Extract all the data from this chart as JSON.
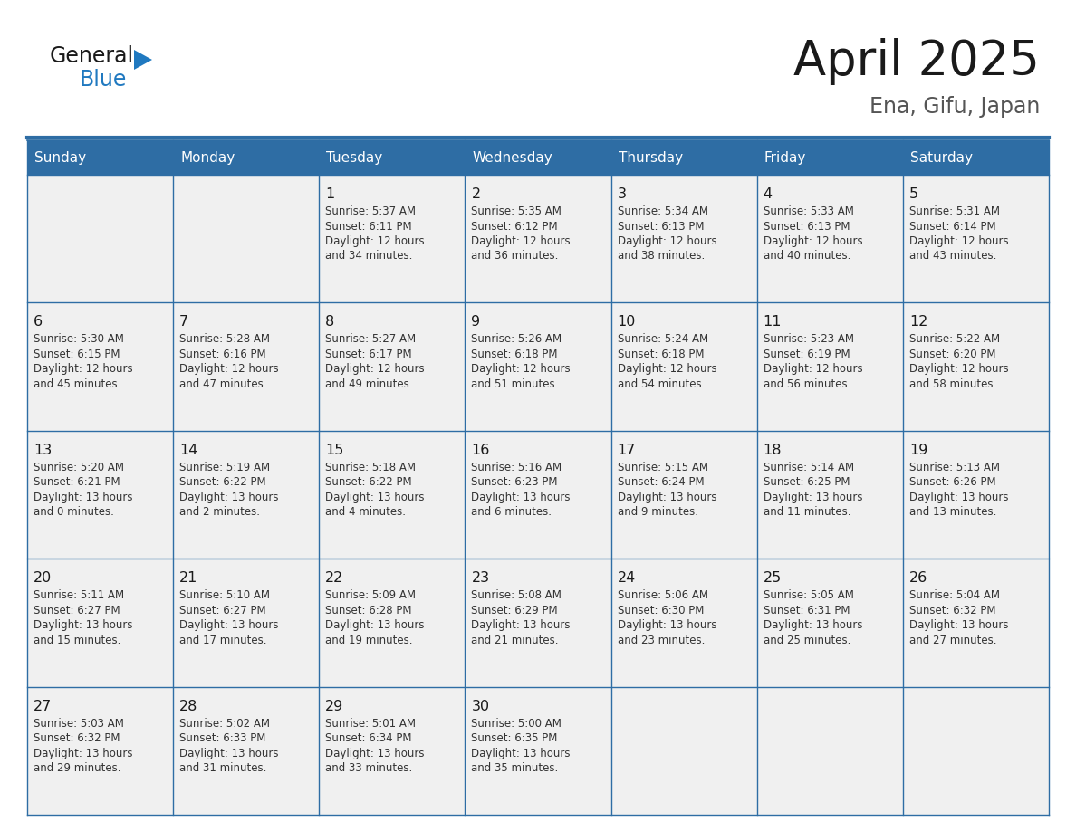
{
  "title": "April 2025",
  "subtitle": "Ena, Gifu, Japan",
  "header_color": "#2E6DA4",
  "header_text_color": "#FFFFFF",
  "cell_bg_color": "#F0F0F0",
  "border_color": "#2E6DA4",
  "text_color": "#333333",
  "day_number_color": "#1a1a1a",
  "title_color": "#1a1a1a",
  "logo_general_color": "#1a1a1a",
  "logo_blue_color": "#2079C0",
  "logo_triangle_color": "#2079C0",
  "day_headers": [
    "Sunday",
    "Monday",
    "Tuesday",
    "Wednesday",
    "Thursday",
    "Friday",
    "Saturday"
  ],
  "weeks": [
    [
      {
        "day": "",
        "info": ""
      },
      {
        "day": "",
        "info": ""
      },
      {
        "day": "1",
        "info": "Sunrise: 5:37 AM\nSunset: 6:11 PM\nDaylight: 12 hours\nand 34 minutes."
      },
      {
        "day": "2",
        "info": "Sunrise: 5:35 AM\nSunset: 6:12 PM\nDaylight: 12 hours\nand 36 minutes."
      },
      {
        "day": "3",
        "info": "Sunrise: 5:34 AM\nSunset: 6:13 PM\nDaylight: 12 hours\nand 38 minutes."
      },
      {
        "day": "4",
        "info": "Sunrise: 5:33 AM\nSunset: 6:13 PM\nDaylight: 12 hours\nand 40 minutes."
      },
      {
        "day": "5",
        "info": "Sunrise: 5:31 AM\nSunset: 6:14 PM\nDaylight: 12 hours\nand 43 minutes."
      }
    ],
    [
      {
        "day": "6",
        "info": "Sunrise: 5:30 AM\nSunset: 6:15 PM\nDaylight: 12 hours\nand 45 minutes."
      },
      {
        "day": "7",
        "info": "Sunrise: 5:28 AM\nSunset: 6:16 PM\nDaylight: 12 hours\nand 47 minutes."
      },
      {
        "day": "8",
        "info": "Sunrise: 5:27 AM\nSunset: 6:17 PM\nDaylight: 12 hours\nand 49 minutes."
      },
      {
        "day": "9",
        "info": "Sunrise: 5:26 AM\nSunset: 6:18 PM\nDaylight: 12 hours\nand 51 minutes."
      },
      {
        "day": "10",
        "info": "Sunrise: 5:24 AM\nSunset: 6:18 PM\nDaylight: 12 hours\nand 54 minutes."
      },
      {
        "day": "11",
        "info": "Sunrise: 5:23 AM\nSunset: 6:19 PM\nDaylight: 12 hours\nand 56 minutes."
      },
      {
        "day": "12",
        "info": "Sunrise: 5:22 AM\nSunset: 6:20 PM\nDaylight: 12 hours\nand 58 minutes."
      }
    ],
    [
      {
        "day": "13",
        "info": "Sunrise: 5:20 AM\nSunset: 6:21 PM\nDaylight: 13 hours\nand 0 minutes."
      },
      {
        "day": "14",
        "info": "Sunrise: 5:19 AM\nSunset: 6:22 PM\nDaylight: 13 hours\nand 2 minutes."
      },
      {
        "day": "15",
        "info": "Sunrise: 5:18 AM\nSunset: 6:22 PM\nDaylight: 13 hours\nand 4 minutes."
      },
      {
        "day": "16",
        "info": "Sunrise: 5:16 AM\nSunset: 6:23 PM\nDaylight: 13 hours\nand 6 minutes."
      },
      {
        "day": "17",
        "info": "Sunrise: 5:15 AM\nSunset: 6:24 PM\nDaylight: 13 hours\nand 9 minutes."
      },
      {
        "day": "18",
        "info": "Sunrise: 5:14 AM\nSunset: 6:25 PM\nDaylight: 13 hours\nand 11 minutes."
      },
      {
        "day": "19",
        "info": "Sunrise: 5:13 AM\nSunset: 6:26 PM\nDaylight: 13 hours\nand 13 minutes."
      }
    ],
    [
      {
        "day": "20",
        "info": "Sunrise: 5:11 AM\nSunset: 6:27 PM\nDaylight: 13 hours\nand 15 minutes."
      },
      {
        "day": "21",
        "info": "Sunrise: 5:10 AM\nSunset: 6:27 PM\nDaylight: 13 hours\nand 17 minutes."
      },
      {
        "day": "22",
        "info": "Sunrise: 5:09 AM\nSunset: 6:28 PM\nDaylight: 13 hours\nand 19 minutes."
      },
      {
        "day": "23",
        "info": "Sunrise: 5:08 AM\nSunset: 6:29 PM\nDaylight: 13 hours\nand 21 minutes."
      },
      {
        "day": "24",
        "info": "Sunrise: 5:06 AM\nSunset: 6:30 PM\nDaylight: 13 hours\nand 23 minutes."
      },
      {
        "day": "25",
        "info": "Sunrise: 5:05 AM\nSunset: 6:31 PM\nDaylight: 13 hours\nand 25 minutes."
      },
      {
        "day": "26",
        "info": "Sunrise: 5:04 AM\nSunset: 6:32 PM\nDaylight: 13 hours\nand 27 minutes."
      }
    ],
    [
      {
        "day": "27",
        "info": "Sunrise: 5:03 AM\nSunset: 6:32 PM\nDaylight: 13 hours\nand 29 minutes."
      },
      {
        "day": "28",
        "info": "Sunrise: 5:02 AM\nSunset: 6:33 PM\nDaylight: 13 hours\nand 31 minutes."
      },
      {
        "day": "29",
        "info": "Sunrise: 5:01 AM\nSunset: 6:34 PM\nDaylight: 13 hours\nand 33 minutes."
      },
      {
        "day": "30",
        "info": "Sunrise: 5:00 AM\nSunset: 6:35 PM\nDaylight: 13 hours\nand 35 minutes."
      },
      {
        "day": "",
        "info": ""
      },
      {
        "day": "",
        "info": ""
      },
      {
        "day": "",
        "info": ""
      }
    ]
  ]
}
